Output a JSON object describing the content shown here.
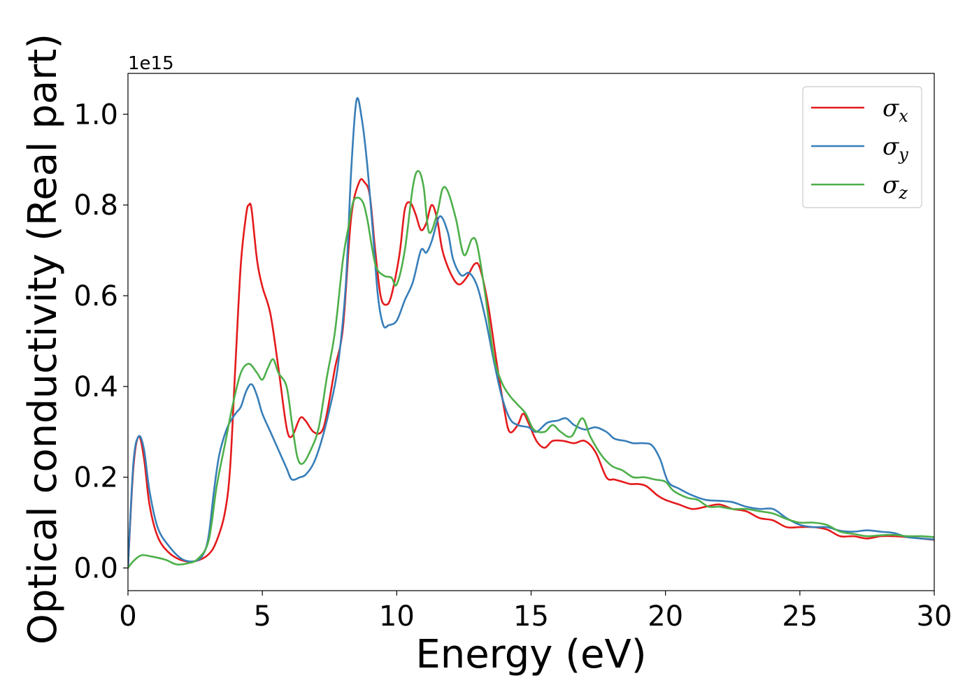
{
  "chart_data": {
    "type": "line",
    "xlabel": "Energy (eV)",
    "ylabel": "Optical conductivity (Real part)",
    "offset_text": "1e15",
    "xlim": [
      0,
      30
    ],
    "ylim": [
      -0.05,
      1.09
    ],
    "y_multiplier": 1000000000000000.0,
    "xticks": [
      0,
      5,
      10,
      15,
      20,
      25,
      30
    ],
    "xtick_labels": [
      "0",
      "5",
      "10",
      "15",
      "20",
      "25",
      "30"
    ],
    "yticks": [
      0.0,
      0.2,
      0.4,
      0.6,
      0.8,
      1.0
    ],
    "ytick_labels": [
      "0.0",
      "0.2",
      "0.4",
      "0.6",
      "0.8",
      "1.0"
    ],
    "grid": false,
    "legend_position": "top-right",
    "series": [
      {
        "name": "σx",
        "symbol": "σ",
        "subscript": "x",
        "color": "#e41a1c",
        "points": [
          [
            0,
            0
          ],
          [
            0.2,
            0.22
          ],
          [
            0.4,
            0.29
          ],
          [
            0.6,
            0.24
          ],
          [
            0.8,
            0.14
          ],
          [
            1.1,
            0.07
          ],
          [
            1.5,
            0.035
          ],
          [
            2.0,
            0.017
          ],
          [
            2.5,
            0.015
          ],
          [
            3.0,
            0.03
          ],
          [
            3.3,
            0.06
          ],
          [
            3.6,
            0.12
          ],
          [
            3.8,
            0.22
          ],
          [
            4.0,
            0.45
          ],
          [
            4.2,
            0.67
          ],
          [
            4.4,
            0.78
          ],
          [
            4.5,
            0.8
          ],
          [
            4.6,
            0.79
          ],
          [
            4.8,
            0.68
          ],
          [
            5.0,
            0.62
          ],
          [
            5.3,
            0.56
          ],
          [
            5.6,
            0.44
          ],
          [
            5.9,
            0.31
          ],
          [
            6.1,
            0.29
          ],
          [
            6.4,
            0.33
          ],
          [
            6.6,
            0.325
          ],
          [
            6.9,
            0.3
          ],
          [
            7.2,
            0.3
          ],
          [
            7.4,
            0.34
          ],
          [
            7.7,
            0.44
          ],
          [
            8.0,
            0.53
          ],
          [
            8.3,
            0.77
          ],
          [
            8.6,
            0.85
          ],
          [
            8.8,
            0.85
          ],
          [
            9.0,
            0.82
          ],
          [
            9.2,
            0.7
          ],
          [
            9.4,
            0.6
          ],
          [
            9.6,
            0.58
          ],
          [
            9.8,
            0.6
          ],
          [
            10.1,
            0.69
          ],
          [
            10.3,
            0.79
          ],
          [
            10.5,
            0.805
          ],
          [
            10.7,
            0.78
          ],
          [
            10.9,
            0.745
          ],
          [
            11.1,
            0.76
          ],
          [
            11.3,
            0.8
          ],
          [
            11.5,
            0.77
          ],
          [
            11.7,
            0.7
          ],
          [
            12.0,
            0.65
          ],
          [
            12.3,
            0.625
          ],
          [
            12.6,
            0.64
          ],
          [
            12.9,
            0.67
          ],
          [
            13.1,
            0.66
          ],
          [
            13.4,
            0.58
          ],
          [
            13.7,
            0.46
          ],
          [
            14.0,
            0.35
          ],
          [
            14.2,
            0.3
          ],
          [
            14.5,
            0.315
          ],
          [
            14.7,
            0.34
          ],
          [
            14.9,
            0.32
          ],
          [
            15.2,
            0.28
          ],
          [
            15.5,
            0.265
          ],
          [
            15.8,
            0.28
          ],
          [
            16.2,
            0.28
          ],
          [
            16.6,
            0.275
          ],
          [
            17.0,
            0.28
          ],
          [
            17.4,
            0.255
          ],
          [
            17.8,
            0.2
          ],
          [
            18.1,
            0.195
          ],
          [
            18.4,
            0.19
          ],
          [
            18.7,
            0.185
          ],
          [
            19.0,
            0.185
          ],
          [
            19.3,
            0.18
          ],
          [
            19.7,
            0.16
          ],
          [
            20.0,
            0.15
          ],
          [
            20.5,
            0.14
          ],
          [
            21.0,
            0.13
          ],
          [
            21.5,
            0.135
          ],
          [
            22.0,
            0.14
          ],
          [
            22.5,
            0.13
          ],
          [
            23.0,
            0.125
          ],
          [
            23.5,
            0.11
          ],
          [
            24.0,
            0.105
          ],
          [
            24.5,
            0.09
          ],
          [
            25.0,
            0.09
          ],
          [
            25.5,
            0.09
          ],
          [
            26.0,
            0.085
          ],
          [
            26.5,
            0.07
          ],
          [
            27.0,
            0.07
          ],
          [
            27.5,
            0.065
          ],
          [
            28.0,
            0.07
          ],
          [
            28.5,
            0.07
          ],
          [
            29.0,
            0.068
          ],
          [
            29.5,
            0.065
          ],
          [
            30.0,
            0.062
          ]
        ]
      },
      {
        "name": "σy",
        "symbol": "σ",
        "subscript": "y",
        "color": "#377eb8",
        "points": [
          [
            0,
            0
          ],
          [
            0.2,
            0.23
          ],
          [
            0.4,
            0.29
          ],
          [
            0.6,
            0.26
          ],
          [
            0.8,
            0.17
          ],
          [
            1.1,
            0.09
          ],
          [
            1.5,
            0.05
          ],
          [
            2.0,
            0.02
          ],
          [
            2.5,
            0.015
          ],
          [
            2.8,
            0.03
          ],
          [
            3.0,
            0.07
          ],
          [
            3.2,
            0.17
          ],
          [
            3.4,
            0.25
          ],
          [
            3.7,
            0.31
          ],
          [
            4.0,
            0.34
          ],
          [
            4.2,
            0.355
          ],
          [
            4.4,
            0.39
          ],
          [
            4.6,
            0.405
          ],
          [
            4.8,
            0.38
          ],
          [
            5.0,
            0.34
          ],
          [
            5.3,
            0.3
          ],
          [
            5.6,
            0.26
          ],
          [
            5.9,
            0.22
          ],
          [
            6.1,
            0.195
          ],
          [
            6.4,
            0.2
          ],
          [
            6.6,
            0.205
          ],
          [
            6.9,
            0.23
          ],
          [
            7.2,
            0.28
          ],
          [
            7.5,
            0.35
          ],
          [
            7.8,
            0.44
          ],
          [
            8.1,
            0.62
          ],
          [
            8.3,
            0.87
          ],
          [
            8.5,
            1.03
          ],
          [
            8.7,
            0.99
          ],
          [
            8.9,
            0.89
          ],
          [
            9.1,
            0.75
          ],
          [
            9.3,
            0.6
          ],
          [
            9.5,
            0.535
          ],
          [
            9.7,
            0.535
          ],
          [
            10.0,
            0.545
          ],
          [
            10.3,
            0.59
          ],
          [
            10.6,
            0.63
          ],
          [
            10.9,
            0.7
          ],
          [
            11.1,
            0.695
          ],
          [
            11.3,
            0.72
          ],
          [
            11.6,
            0.775
          ],
          [
            11.9,
            0.74
          ],
          [
            12.1,
            0.68
          ],
          [
            12.4,
            0.645
          ],
          [
            12.7,
            0.65
          ],
          [
            13.0,
            0.62
          ],
          [
            13.3,
            0.55
          ],
          [
            13.6,
            0.46
          ],
          [
            13.9,
            0.38
          ],
          [
            14.2,
            0.33
          ],
          [
            14.5,
            0.315
          ],
          [
            14.9,
            0.31
          ],
          [
            15.2,
            0.3
          ],
          [
            15.6,
            0.32
          ],
          [
            16.0,
            0.325
          ],
          [
            16.3,
            0.33
          ],
          [
            16.6,
            0.315
          ],
          [
            17.0,
            0.305
          ],
          [
            17.4,
            0.31
          ],
          [
            17.8,
            0.3
          ],
          [
            18.1,
            0.285
          ],
          [
            18.5,
            0.28
          ],
          [
            18.8,
            0.275
          ],
          [
            19.2,
            0.275
          ],
          [
            19.5,
            0.27
          ],
          [
            19.8,
            0.24
          ],
          [
            20.1,
            0.19
          ],
          [
            20.5,
            0.175
          ],
          [
            21.0,
            0.16
          ],
          [
            21.5,
            0.15
          ],
          [
            22.0,
            0.148
          ],
          [
            22.5,
            0.145
          ],
          [
            23.0,
            0.135
          ],
          [
            23.5,
            0.13
          ],
          [
            24.0,
            0.13
          ],
          [
            24.5,
            0.11
          ],
          [
            25.0,
            0.095
          ],
          [
            25.5,
            0.09
          ],
          [
            26.0,
            0.09
          ],
          [
            26.5,
            0.082
          ],
          [
            27.0,
            0.08
          ],
          [
            27.5,
            0.083
          ],
          [
            28.0,
            0.08
          ],
          [
            28.5,
            0.077
          ],
          [
            29.0,
            0.068
          ],
          [
            29.5,
            0.065
          ],
          [
            30.0,
            0.063
          ]
        ]
      },
      {
        "name": "σz",
        "symbol": "σ",
        "subscript": "z",
        "color": "#4daf4a",
        "points": [
          [
            0,
            0
          ],
          [
            0.2,
            0.015
          ],
          [
            0.5,
            0.028
          ],
          [
            0.9,
            0.025
          ],
          [
            1.4,
            0.018
          ],
          [
            1.8,
            0.008
          ],
          [
            2.2,
            0.01
          ],
          [
            2.6,
            0.02
          ],
          [
            3.0,
            0.06
          ],
          [
            3.3,
            0.18
          ],
          [
            3.6,
            0.27
          ],
          [
            3.9,
            0.36
          ],
          [
            4.2,
            0.43
          ],
          [
            4.5,
            0.45
          ],
          [
            4.8,
            0.43
          ],
          [
            5.0,
            0.415
          ],
          [
            5.2,
            0.44
          ],
          [
            5.4,
            0.46
          ],
          [
            5.6,
            0.43
          ],
          [
            5.9,
            0.4
          ],
          [
            6.1,
            0.32
          ],
          [
            6.3,
            0.245
          ],
          [
            6.5,
            0.23
          ],
          [
            6.8,
            0.26
          ],
          [
            7.1,
            0.31
          ],
          [
            7.4,
            0.42
          ],
          [
            7.7,
            0.52
          ],
          [
            8.0,
            0.68
          ],
          [
            8.2,
            0.75
          ],
          [
            8.4,
            0.81
          ],
          [
            8.7,
            0.81
          ],
          [
            8.9,
            0.77
          ],
          [
            9.2,
            0.67
          ],
          [
            9.5,
            0.645
          ],
          [
            9.8,
            0.64
          ],
          [
            10.0,
            0.625
          ],
          [
            10.3,
            0.7
          ],
          [
            10.6,
            0.84
          ],
          [
            10.8,
            0.875
          ],
          [
            11.0,
            0.84
          ],
          [
            11.2,
            0.74
          ],
          [
            11.5,
            0.78
          ],
          [
            11.7,
            0.835
          ],
          [
            11.9,
            0.83
          ],
          [
            12.2,
            0.77
          ],
          [
            12.5,
            0.69
          ],
          [
            12.8,
            0.725
          ],
          [
            13.0,
            0.71
          ],
          [
            13.3,
            0.6
          ],
          [
            13.6,
            0.47
          ],
          [
            13.9,
            0.41
          ],
          [
            14.2,
            0.38
          ],
          [
            14.5,
            0.36
          ],
          [
            14.8,
            0.34
          ],
          [
            15.1,
            0.305
          ],
          [
            15.5,
            0.3
          ],
          [
            15.8,
            0.315
          ],
          [
            16.1,
            0.3
          ],
          [
            16.5,
            0.29
          ],
          [
            16.9,
            0.33
          ],
          [
            17.2,
            0.29
          ],
          [
            17.6,
            0.25
          ],
          [
            18.0,
            0.225
          ],
          [
            18.4,
            0.215
          ],
          [
            18.8,
            0.2
          ],
          [
            19.2,
            0.2
          ],
          [
            19.6,
            0.195
          ],
          [
            20.0,
            0.19
          ],
          [
            20.3,
            0.17
          ],
          [
            20.8,
            0.155
          ],
          [
            21.2,
            0.15
          ],
          [
            21.6,
            0.135
          ],
          [
            22.0,
            0.135
          ],
          [
            22.5,
            0.13
          ],
          [
            23.0,
            0.13
          ],
          [
            23.5,
            0.125
          ],
          [
            24.0,
            0.12
          ],
          [
            24.5,
            0.108
          ],
          [
            25.0,
            0.1
          ],
          [
            25.5,
            0.1
          ],
          [
            26.0,
            0.095
          ],
          [
            26.5,
            0.08
          ],
          [
            27.0,
            0.075
          ],
          [
            27.5,
            0.07
          ],
          [
            28.0,
            0.072
          ],
          [
            28.5,
            0.073
          ],
          [
            29.0,
            0.07
          ],
          [
            29.5,
            0.07
          ],
          [
            30.0,
            0.068
          ]
        ]
      }
    ]
  }
}
